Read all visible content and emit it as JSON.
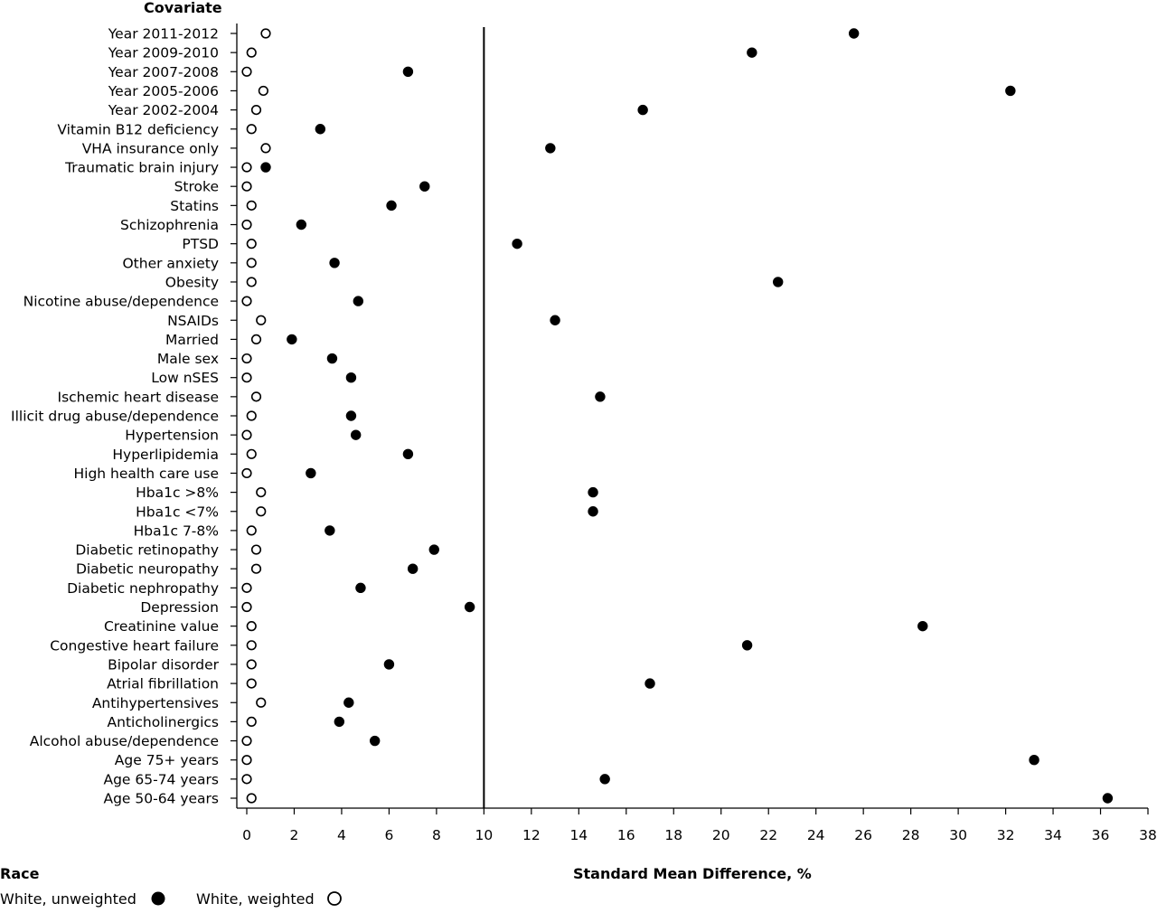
{
  "chart_data": {
    "type": "scatter",
    "title": "",
    "ylabel": "Covariate",
    "xlabel": "Standard Mean Difference, %",
    "xlim": [
      0,
      38
    ],
    "xticks": [
      0,
      2,
      4,
      6,
      8,
      10,
      12,
      14,
      16,
      18,
      20,
      22,
      24,
      26,
      28,
      30,
      32,
      34,
      36,
      38
    ],
    "reference_line_x": 10,
    "grid": false,
    "legend": {
      "title": "Race",
      "placement": "bottom-left",
      "entries": [
        {
          "name": "White, unweighted",
          "marker": "filled-circle"
        },
        {
          "name": "White, weighted",
          "marker": "open-circle"
        }
      ]
    },
    "categories": [
      "Year 2011-2012",
      "Year 2009-2010",
      "Year 2007-2008",
      "Year 2005-2006",
      "Year 2002-2004",
      "Vitamin B12 deficiency",
      "VHA insurance only",
      "Traumatic brain injury",
      "Stroke",
      "Statins",
      "Schizophrenia",
      "PTSD",
      "Other anxiety",
      "Obesity",
      "Nicotine abuse/dependence",
      "NSAIDs",
      "Married",
      "Male sex",
      "Low nSES",
      "Ischemic heart disease",
      "Illicit drug abuse/dependence",
      "Hypertension",
      "Hyperlipidemia",
      "High health care use",
      "Hba1c >8%",
      "Hba1c <7%",
      "Hba1c 7-8%",
      "Diabetic retinopathy",
      "Diabetic neuropathy",
      "Diabetic nephropathy",
      "Depression",
      "Creatinine value",
      "Congestive heart failure",
      "Bipolar disorder",
      "Atrial fibrillation",
      "Antihypertensives",
      "Anticholinergics",
      "Alcohol abuse/dependence",
      "Age 75+ years",
      "Age 65-74 years",
      "Age 50-64 years"
    ],
    "series": [
      {
        "name": "White, unweighted",
        "marker": "filled",
        "color": "#000000",
        "values": [
          25.6,
          21.3,
          6.8,
          32.2,
          16.7,
          3.1,
          12.8,
          0.8,
          7.5,
          6.1,
          2.3,
          11.4,
          3.7,
          22.4,
          4.7,
          13.0,
          1.9,
          3.6,
          4.4,
          14.9,
          4.4,
          4.6,
          6.8,
          2.7,
          14.6,
          14.6,
          3.5,
          7.9,
          7.0,
          4.8,
          9.4,
          28.5,
          21.1,
          6.0,
          17.0,
          4.3,
          3.9,
          5.4,
          33.2,
          15.1,
          36.3
        ]
      },
      {
        "name": "White, weighted",
        "marker": "open",
        "color": "#000000",
        "values": [
          0.8,
          0.2,
          0.0,
          0.7,
          0.4,
          0.2,
          0.8,
          0.0,
          0.0,
          0.2,
          0.0,
          0.2,
          0.2,
          0.2,
          0.0,
          0.6,
          0.4,
          0.0,
          0.0,
          0.4,
          0.2,
          0.0,
          0.2,
          0.0,
          0.6,
          0.6,
          0.2,
          0.4,
          0.4,
          0.0,
          0.0,
          0.2,
          0.2,
          0.2,
          0.2,
          0.6,
          0.2,
          0.0,
          0.0,
          0.0,
          0.2
        ]
      }
    ]
  }
}
